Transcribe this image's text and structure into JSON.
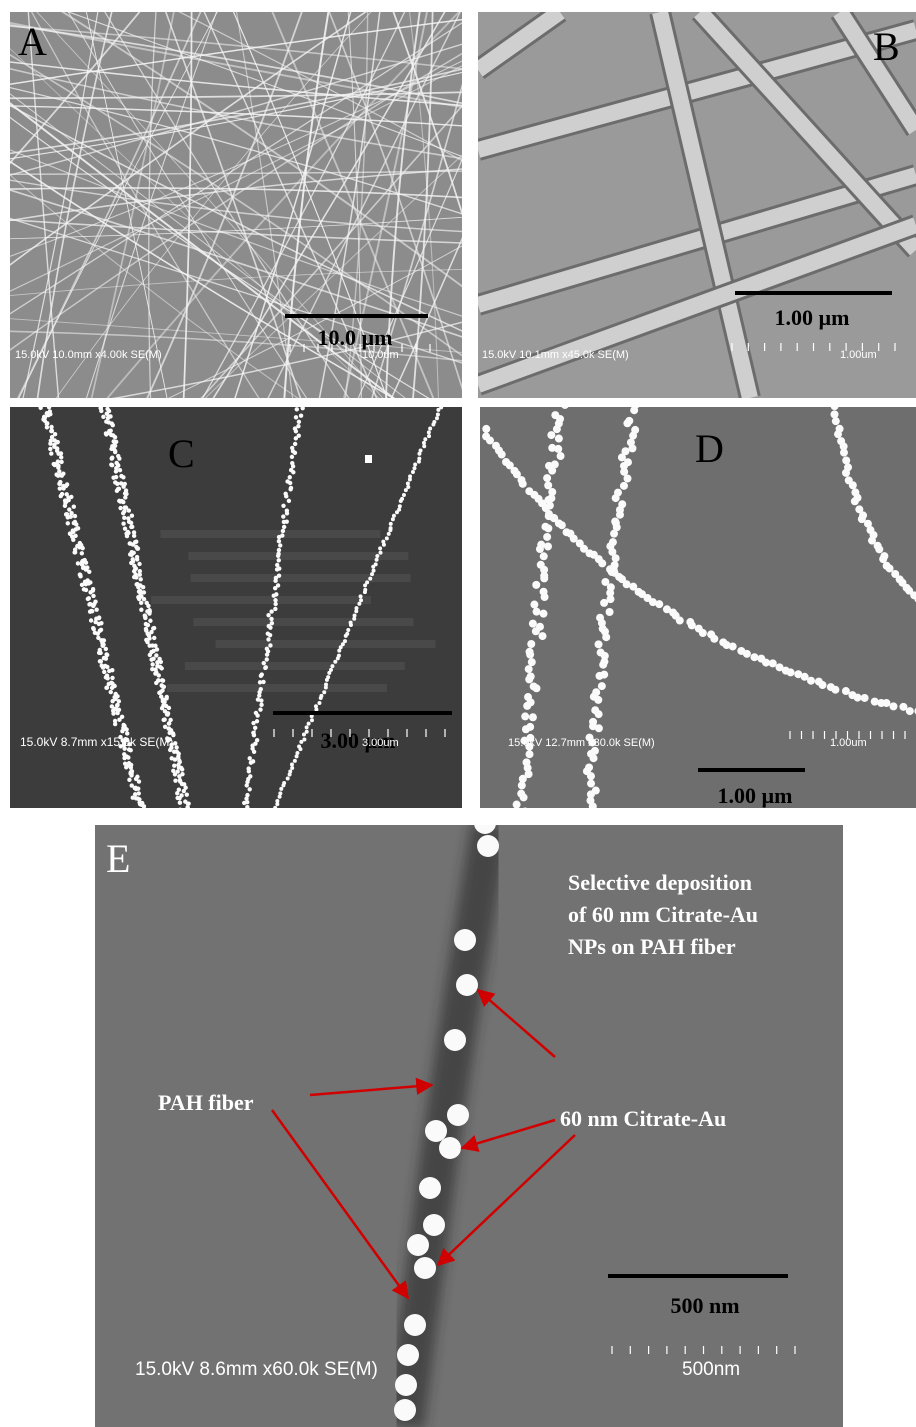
{
  "panels": [
    {
      "label": "A",
      "scale_bar": "10.0 µm",
      "info": "15.0kV 10.0mm x4.00k SE(M)",
      "scale_text": "10.0um"
    },
    {
      "label": "B",
      "scale_bar": "1.00 µm",
      "info": "15.0kV 10.1mm x45.0k SE(M)",
      "scale_text": "1.00um"
    },
    {
      "label": "C",
      "scale_bar": "3.00 µm",
      "info": "15.0kV 8.7mm x15.0k SE(M)",
      "scale_text": "3.00um"
    },
    {
      "label": "D",
      "scale_bar": "1.00 µm",
      "info": "15.0kV 12.7mm x30.0k SE(M)",
      "scale_text": "1.00um"
    },
    {
      "label": "E",
      "scale_bar": "500 nm",
      "info": "15.0kV 8.6mm x60.0k SE(M)",
      "scale_text": "500nm"
    }
  ],
  "panel_e_annotations": {
    "caption": [
      "Selective deposition",
      "of 60 nm Citrate-Au",
      "NPs on PAH fiber"
    ],
    "fiber_label": "PAH fiber",
    "particle_label": "60 nm Citrate-Au"
  }
}
